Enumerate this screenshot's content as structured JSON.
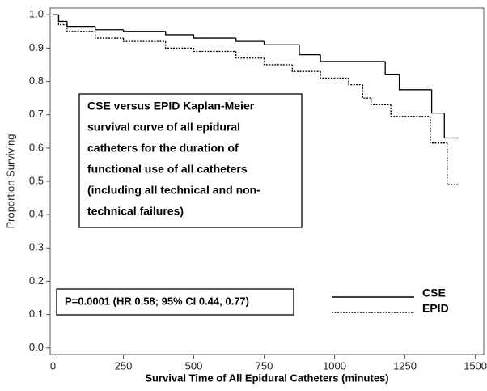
{
  "chart_data": {
    "type": "step",
    "y_label": "Proportion Surviving",
    "x_label": "Survival Time of All Epidural Catheters (minutes)",
    "xlim": [
      -10,
      1530
    ],
    "ylim": [
      -0.02,
      1.02
    ],
    "xticks": [
      0,
      250,
      500,
      750,
      1000,
      1250,
      1500
    ],
    "yticks": [
      {
        "value": 0,
        "label": "0.0"
      },
      0.1,
      0.2,
      0.3,
      0.4,
      0.5,
      0.6,
      0.7,
      0.8,
      0.9,
      {
        "value": 1,
        "label": "1.0"
      }
    ],
    "annotation": [
      "CSE versus EPID Kaplan-Meier",
      "survival curve of all epidural",
      "catheters for the duration of",
      "functional use of all catheters",
      "(including all technical and non-",
      "technical failures)"
    ],
    "stat_note": "P=0.0001 (HR 0.58; 95% CI 0.44, 0.77)",
    "series": [
      {
        "name": "CSE",
        "color": "#000000",
        "dash": "solid",
        "x": [
          0,
          20,
          50,
          150,
          250,
          400,
          500,
          650,
          750,
          875,
          950,
          1180,
          1230,
          1345,
          1390,
          1440
        ],
        "values": [
          1.0,
          0.98,
          0.965,
          0.955,
          0.95,
          0.94,
          0.93,
          0.92,
          0.91,
          0.88,
          0.86,
          0.82,
          0.775,
          0.705,
          0.63,
          0.63
        ]
      },
      {
        "name": "EPID",
        "color": "#000000",
        "dash": "dotted",
        "x": [
          0,
          20,
          50,
          150,
          250,
          400,
          500,
          650,
          750,
          850,
          950,
          1050,
          1100,
          1130,
          1200,
          1340,
          1400,
          1440
        ],
        "values": [
          1.0,
          0.97,
          0.95,
          0.93,
          0.92,
          0.9,
          0.89,
          0.87,
          0.85,
          0.83,
          0.81,
          0.79,
          0.75,
          0.73,
          0.695,
          0.615,
          0.49,
          0.49
        ]
      }
    ]
  }
}
